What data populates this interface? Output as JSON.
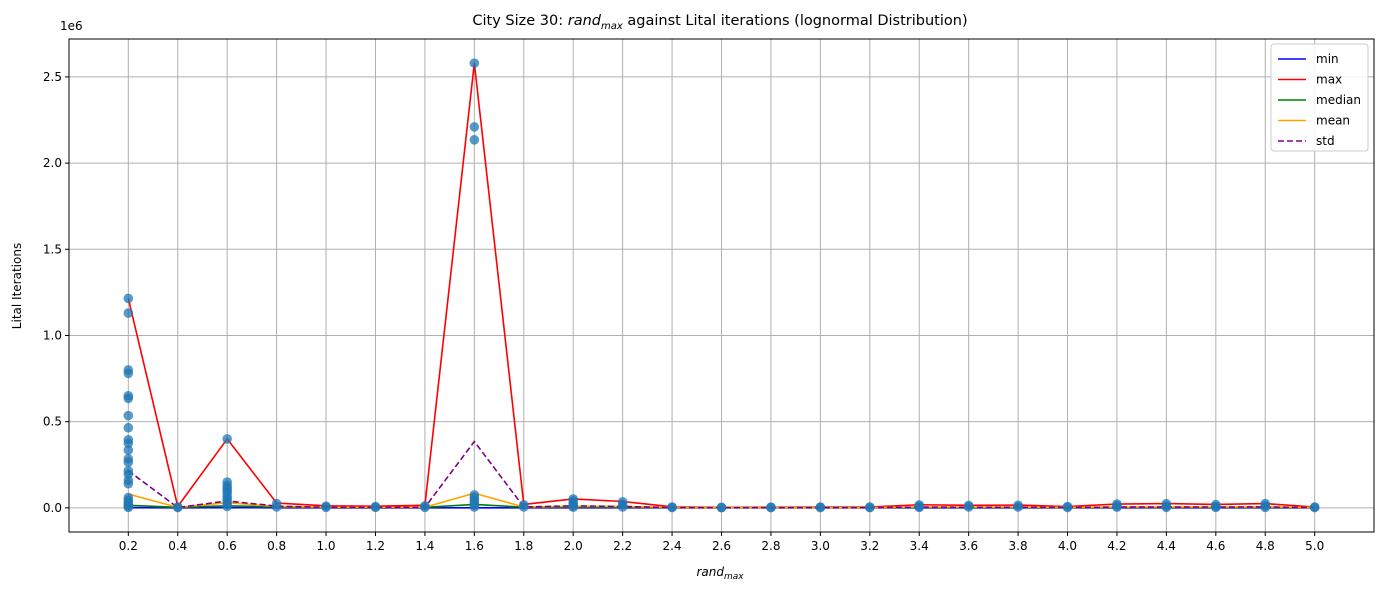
{
  "chart_data": {
    "type": "line",
    "title_prefix": "City Size 30: ",
    "title_math_base": "rand",
    "title_math_sub": "max",
    "title_suffix": " against Lital iterations (lognormal Distribution)",
    "xlabel_base": "rand",
    "xlabel_sub": "max",
    "ylabel": "Lital Iterations",
    "y_offset_label": "1e6",
    "ylim": [
      -140000,
      2720000
    ],
    "xlim": [
      -0.04,
      5.24
    ],
    "x_ticks": [
      0.2,
      0.4,
      0.6,
      0.8,
      1.0,
      1.2,
      1.4,
      1.6,
      1.8,
      2.0,
      2.2,
      2.4,
      2.6,
      2.8,
      3.0,
      3.2,
      3.4,
      3.6,
      3.8,
      4.0,
      4.2,
      4.4,
      4.6,
      4.8,
      5.0
    ],
    "x_tick_labels": [
      "0.2",
      "0.4",
      "0.6",
      "0.8",
      "1.0",
      "1.2",
      "1.4",
      "1.6",
      "1.8",
      "2.0",
      "2.2",
      "2.4",
      "2.6",
      "2.8",
      "3.0",
      "3.2",
      "3.4",
      "3.6",
      "3.8",
      "4.0",
      "4.2",
      "4.4",
      "4.6",
      "4.8",
      "5.0"
    ],
    "y_ticks": [
      0,
      500000,
      1000000,
      1500000,
      2000000,
      2500000
    ],
    "y_tick_labels": [
      "0.0",
      "0.5",
      "1.0",
      "1.5",
      "2.0",
      "2.5"
    ],
    "grid": true,
    "legend_position": "top-right",
    "x": [
      0.2,
      0.4,
      0.6,
      0.8,
      1.0,
      1.2,
      1.4,
      1.6,
      1.8,
      2.0,
      2.2,
      2.4,
      2.6,
      2.8,
      3.0,
      3.2,
      3.4,
      3.6,
      3.8,
      4.0,
      4.2,
      4.4,
      4.6,
      4.8,
      5.0
    ],
    "series": [
      {
        "name": "min",
        "color": "#0000ff",
        "dash": "",
        "values": [
          1000,
          500,
          800,
          500,
          400,
          400,
          400,
          500,
          400,
          500,
          400,
          300,
          300,
          300,
          300,
          300,
          400,
          400,
          400,
          400,
          400,
          400,
          400,
          400,
          400
        ]
      },
      {
        "name": "max",
        "color": "#ff0000",
        "dash": "",
        "values": [
          1215000,
          8000,
          400000,
          28000,
          12000,
          10000,
          15000,
          2580000,
          20000,
          52000,
          37000,
          6000,
          3000,
          4000,
          5000,
          5000,
          18000,
          15000,
          16000,
          8000,
          22000,
          25000,
          20000,
          25000,
          5000
        ]
      },
      {
        "name": "median",
        "color": "#008000",
        "dash": "",
        "values": [
          15000,
          3000,
          12000,
          5000,
          3000,
          3000,
          3000,
          20000,
          4000,
          5000,
          4000,
          2000,
          1000,
          1500,
          1500,
          1500,
          3000,
          3000,
          3000,
          2000,
          3000,
          3000,
          3000,
          3000,
          2000
        ]
      },
      {
        "name": "mean",
        "color": "#ffa500",
        "dash": "",
        "values": [
          80000,
          3000,
          30000,
          8000,
          4000,
          3500,
          4000,
          85000,
          5000,
          10000,
          8000,
          3000,
          1500,
          2000,
          2000,
          2000,
          5000,
          4500,
          4500,
          3000,
          5000,
          5500,
          5000,
          5500,
          2500
        ]
      },
      {
        "name": "std",
        "color": "#800080",
        "dash": "6,3",
        "values": [
          215000,
          2000,
          40000,
          10000,
          3000,
          2500,
          3000,
          385000,
          5000,
          12000,
          8000,
          1500,
          800,
          1000,
          1000,
          1000,
          4000,
          3500,
          3500,
          2000,
          4500,
          5000,
          4500,
          5500,
          1500
        ]
      }
    ],
    "scatter": {
      "color": "#1f77b4",
      "points": [
        [
          0.2,
          1215000
        ],
        [
          0.2,
          1130000
        ],
        [
          0.2,
          800000
        ],
        [
          0.2,
          780000
        ],
        [
          0.2,
          650000
        ],
        [
          0.2,
          635000
        ],
        [
          0.2,
          535000
        ],
        [
          0.2,
          465000
        ],
        [
          0.2,
          395000
        ],
        [
          0.2,
          375000
        ],
        [
          0.2,
          335000
        ],
        [
          0.2,
          285000
        ],
        [
          0.2,
          265000
        ],
        [
          0.2,
          215000
        ],
        [
          0.2,
          195000
        ],
        [
          0.2,
          160000
        ],
        [
          0.2,
          140000
        ],
        [
          0.2,
          60000
        ],
        [
          0.2,
          45000
        ],
        [
          0.2,
          30000
        ],
        [
          0.2,
          20000
        ],
        [
          0.2,
          10000
        ],
        [
          0.2,
          3000
        ],
        [
          0.4,
          5000
        ],
        [
          0.4,
          2000
        ],
        [
          0.6,
          400000
        ],
        [
          0.6,
          150000
        ],
        [
          0.6,
          130000
        ],
        [
          0.6,
          115000
        ],
        [
          0.6,
          100000
        ],
        [
          0.6,
          85000
        ],
        [
          0.6,
          65000
        ],
        [
          0.6,
          50000
        ],
        [
          0.6,
          35000
        ],
        [
          0.6,
          20000
        ],
        [
          0.6,
          8000
        ],
        [
          0.8,
          25000
        ],
        [
          0.8,
          5000
        ],
        [
          1.0,
          10000
        ],
        [
          1.0,
          3000
        ],
        [
          1.2,
          8000
        ],
        [
          1.2,
          3000
        ],
        [
          1.4,
          12000
        ],
        [
          1.4,
          3000
        ],
        [
          1.6,
          2580000
        ],
        [
          1.6,
          2210000
        ],
        [
          1.6,
          2135000
        ],
        [
          1.6,
          75000
        ],
        [
          1.6,
          60000
        ],
        [
          1.6,
          45000
        ],
        [
          1.6,
          30000
        ],
        [
          1.6,
          15000
        ],
        [
          1.6,
          5000
        ],
        [
          1.8,
          18000
        ],
        [
          1.8,
          5000
        ],
        [
          2.0,
          52000
        ],
        [
          2.0,
          40000
        ],
        [
          2.0,
          25000
        ],
        [
          2.0,
          12000
        ],
        [
          2.0,
          4000
        ],
        [
          2.2,
          35000
        ],
        [
          2.2,
          20000
        ],
        [
          2.2,
          5000
        ],
        [
          2.4,
          5000
        ],
        [
          2.4,
          2000
        ],
        [
          2.6,
          3000
        ],
        [
          2.6,
          1000
        ],
        [
          2.8,
          4000
        ],
        [
          2.8,
          1500
        ],
        [
          3.0,
          5000
        ],
        [
          3.0,
          1500
        ],
        [
          3.2,
          5000
        ],
        [
          3.2,
          1500
        ],
        [
          3.4,
          17000
        ],
        [
          3.4,
          8000
        ],
        [
          3.4,
          3000
        ],
        [
          3.6,
          14000
        ],
        [
          3.6,
          5000
        ],
        [
          3.8,
          15000
        ],
        [
          3.8,
          5000
        ],
        [
          4.0,
          8000
        ],
        [
          4.0,
          2000
        ],
        [
          4.2,
          22000
        ],
        [
          4.2,
          12000
        ],
        [
          4.2,
          4000
        ],
        [
          4.4,
          24000
        ],
        [
          4.4,
          10000
        ],
        [
          4.4,
          3000
        ],
        [
          4.6,
          19000
        ],
        [
          4.6,
          8000
        ],
        [
          4.6,
          3000
        ],
        [
          4.8,
          25000
        ],
        [
          4.8,
          12000
        ],
        [
          4.8,
          3000
        ],
        [
          5.0,
          5000
        ],
        [
          5.0,
          2000
        ]
      ]
    }
  }
}
